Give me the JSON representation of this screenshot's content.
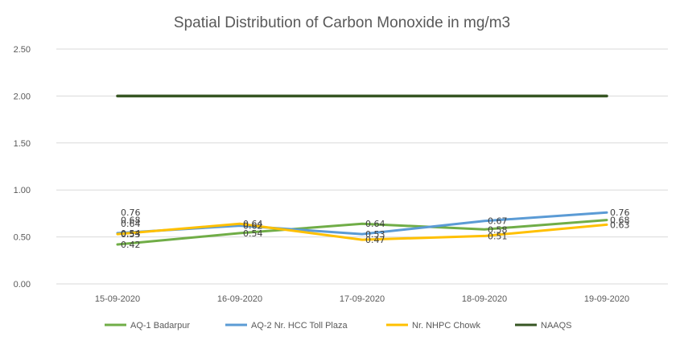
{
  "chart_data": {
    "type": "line",
    "title": "Spatial Distribution of Carbon Monoxide in mg/m3",
    "xlabel": "",
    "ylabel": "",
    "categories": [
      "15-09-2020",
      "16-09-2020",
      "17-09-2020",
      "18-09-2020",
      "19-09-2020"
    ],
    "ylim": [
      0,
      2.5
    ],
    "yticks": [
      "0.00",
      "0.50",
      "1.00",
      "1.50",
      "2.00",
      "2.50"
    ],
    "grid": true,
    "legend_position": "bottom",
    "series": [
      {
        "name": "AQ-1 Badarpur",
        "color": "#70ad47",
        "values": [
          0.42,
          0.54,
          0.64,
          0.58,
          0.68
        ],
        "labels": [
          "0.42",
          "0.54",
          "0.64",
          "0.58",
          "0.68"
        ]
      },
      {
        "name": "AQ-2 Nr. HCC Toll Plaza",
        "color": "#5b9bd5",
        "values": [
          0.54,
          0.62,
          0.53,
          0.67,
          0.76
        ],
        "labels": [
          "0.54",
          "0.62",
          "0.53",
          "0.67",
          "0.76"
        ]
      },
      {
        "name": "Nr. NHPC Chowk",
        "color": "#ffc000",
        "values": [
          0.53,
          0.64,
          0.47,
          0.51,
          0.63
        ],
        "labels": [
          "0.53",
          "0.64",
          "0.47",
          "0.51",
          "0.63"
        ]
      },
      {
        "name": "NAAQS",
        "color": "#375623",
        "values": [
          2,
          2,
          2,
          2,
          2
        ],
        "labels": []
      }
    ],
    "extra_labels": [
      {
        "category": "15-09-2020",
        "value": 0.76,
        "text": "0.76"
      },
      {
        "category": "15-09-2020",
        "value": 0.68,
        "text": "0.68"
      },
      {
        "category": "15-09-2020",
        "value": 0.64,
        "text": "0.64"
      }
    ]
  }
}
